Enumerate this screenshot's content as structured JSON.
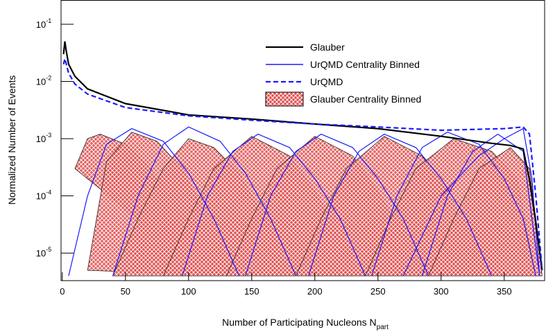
{
  "chart_data": {
    "type": "line",
    "x_label": "Number of Participating Nucleons N",
    "x_label_sub": "part",
    "y_label": "Normalized Number of Events",
    "log_y": true,
    "xlim": [
      -1,
      382
    ],
    "ylim": [
      3.3e-06,
      0.265
    ],
    "xticks": [
      0,
      50,
      100,
      150,
      200,
      250,
      300,
      350
    ],
    "yticks": [
      {
        "value": 0.1,
        "label": "10",
        "sup": "-1"
      },
      {
        "value": 0.01,
        "label": "10",
        "sup": "-2"
      },
      {
        "value": 0.001,
        "label": "10",
        "sup": "-3"
      },
      {
        "value": 0.0001,
        "label": "10",
        "sup": "-4"
      },
      {
        "value": 1e-05,
        "label": "10",
        "sup": "-5"
      }
    ],
    "legend": "upper right",
    "series": [
      {
        "name": "Glauber Centrality Binned",
        "color": "#cc0000",
        "style": "hatched",
        "bins": [
          {
            "x": [
              10,
              20,
              30,
              50,
              70,
              90,
              110
            ],
            "values": [
              0.0003,
              0.001,
              0.0012,
              0.0008,
              0.0003,
              4e-05,
              5e-06
            ]
          },
          {
            "x": [
              20,
              35,
              55,
              75,
              95,
              115,
              135
            ],
            "values": [
              5e-06,
              0.0004,
              0.0013,
              0.0009,
              0.0003,
              4e-05,
              4e-06
            ]
          },
          {
            "x": [
              40,
              60,
              80,
              100,
              120,
              140,
              160,
              180
            ],
            "values": [
              4e-06,
              4e-05,
              0.0003,
              0.001,
              0.0007,
              0.00025,
              4e-05,
              4e-06
            ]
          },
          {
            "x": [
              80,
              100,
              120,
              150,
              180,
              200,
              220,
              240
            ],
            "values": [
              4e-06,
              4e-05,
              0.0003,
              0.0011,
              0.0005,
              0.00012,
              2e-05,
              4e-06
            ]
          },
          {
            "x": [
              130,
              150,
              170,
              200,
              230,
              250,
              270,
              290
            ],
            "values": [
              4e-06,
              4e-05,
              0.0003,
              0.0011,
              0.0005,
              0.00012,
              2e-05,
              4e-06
            ]
          },
          {
            "x": [
              185,
              205,
              225,
              255,
              285,
              305,
              325,
              345
            ],
            "values": [
              4e-06,
              4e-05,
              0.0003,
              0.0011,
              0.0005,
              0.00012,
              2e-05,
              4e-06
            ]
          },
          {
            "x": [
              240,
              260,
              280,
              310,
              340,
              360,
              375
            ],
            "values": [
              4e-06,
              4e-05,
              0.0003,
              0.001,
              0.0006,
              0.0002,
              4e-06
            ]
          },
          {
            "x": [
              290,
              310,
              330,
              355,
              370,
              375,
              380
            ],
            "values": [
              4e-06,
              4e-05,
              0.0003,
              0.0007,
              0.0003,
              4e-05,
              4e-06
            ]
          }
        ]
      },
      {
        "name": "UrQMD Centrality Binned",
        "color": "#1a1aff",
        "style": "thin",
        "bins": [
          {
            "x": [
              5,
              20,
              35,
              55,
              80,
              100,
              120,
              140
            ],
            "values": [
              4e-06,
              0.0001,
              0.0008,
              0.0015,
              0.0009,
              0.00025,
              4e-05,
              4e-06
            ]
          },
          {
            "x": [
              40,
              60,
              80,
              100,
              125,
              145,
              165,
              185
            ],
            "values": [
              4e-06,
              0.0001,
              0.0008,
              0.0016,
              0.0009,
              0.00025,
              4e-05,
              4e-06
            ]
          },
          {
            "x": [
              95,
              115,
              135,
              155,
              180,
              200,
              220,
              240
            ],
            "values": [
              4e-06,
              0.0001,
              0.0006,
              0.0012,
              0.0007,
              0.0002,
              4e-05,
              4e-06
            ]
          },
          {
            "x": [
              145,
              165,
              185,
              205,
              230,
              250,
              270,
              290
            ],
            "values": [
              4e-06,
              0.0001,
              0.0006,
              0.0012,
              0.0007,
              0.0002,
              4e-05,
              4e-06
            ]
          },
          {
            "x": [
              195,
              215,
              235,
              255,
              280,
              300,
              320,
              340
            ],
            "values": [
              4e-06,
              0.0001,
              0.0006,
              0.0012,
              0.0007,
              0.0002,
              4e-05,
              4e-06
            ]
          },
          {
            "x": [
              245,
              265,
              285,
              305,
              330,
              350,
              365,
              375
            ],
            "values": [
              4e-06,
              0.0001,
              0.0007,
              0.0013,
              0.0008,
              0.0002,
              4e-05,
              4e-06
            ]
          },
          {
            "x": [
              285,
              305,
              325,
              345,
              365,
              372,
              378
            ],
            "values": [
              4e-06,
              0.0001,
              0.0006,
              0.0012,
              0.0006,
              4e-05,
              4e-06
            ]
          },
          {
            "x": [
              270,
              300,
              330,
              350,
              365,
              372,
              378
            ],
            "values": [
              4e-06,
              0.0001,
              0.0005,
              0.001,
              0.0015,
              0.0002,
              4e-06
            ]
          }
        ]
      },
      {
        "name": "Glauber",
        "color": "#000000",
        "style": "solid",
        "x": [
          1,
          2,
          3,
          5,
          10,
          20,
          50,
          100,
          150,
          200,
          250,
          300,
          340,
          355,
          365,
          370,
          375,
          380
        ],
        "values": [
          0.03,
          0.05,
          0.035,
          0.02,
          0.0123,
          0.0074,
          0.0041,
          0.0026,
          0.0022,
          0.0018,
          0.0015,
          0.0011,
          0.00083,
          0.00076,
          0.00066,
          0.00019,
          3.5e-05,
          5e-06
        ]
      },
      {
        "name": "UrQMD",
        "color": "#1a1aff",
        "style": "dashed",
        "x": [
          1,
          2,
          5,
          10,
          20,
          50,
          100,
          150,
          200,
          250,
          300,
          350,
          365,
          370,
          375,
          380
        ],
        "values": [
          0.02,
          0.025,
          0.014,
          0.009,
          0.006,
          0.0035,
          0.0025,
          0.0021,
          0.0018,
          0.0016,
          0.0014,
          0.0015,
          0.0016,
          0.0012,
          0.0001,
          5e-06
        ]
      }
    ]
  }
}
